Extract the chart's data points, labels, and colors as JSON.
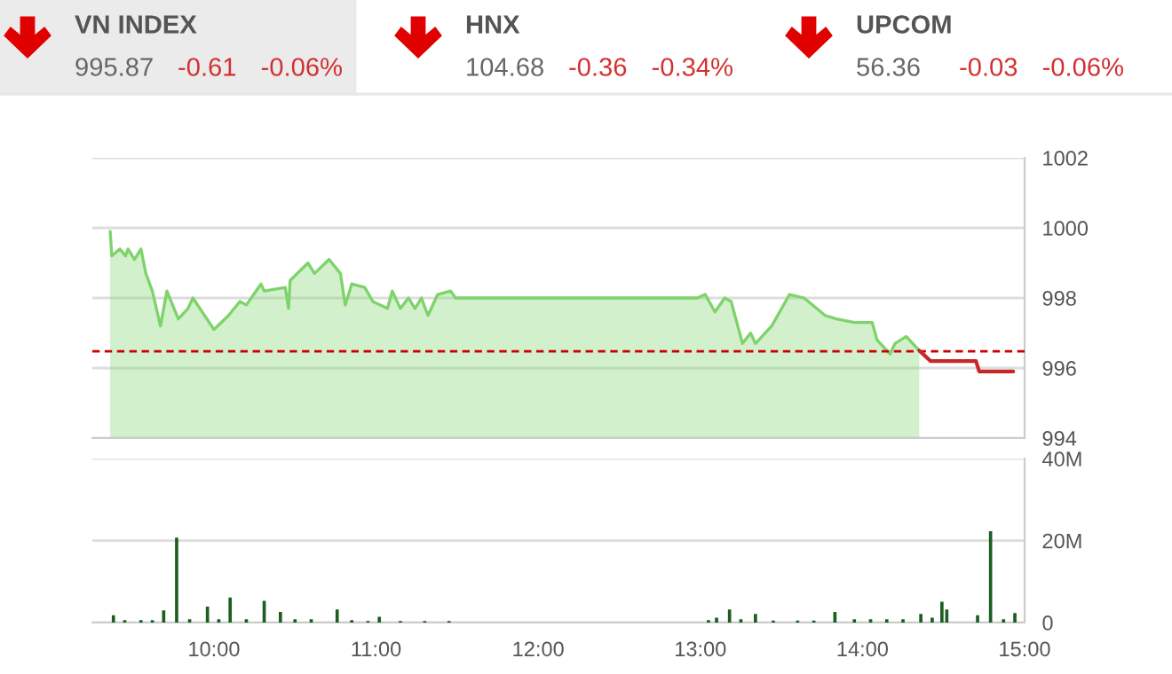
{
  "chart_data": [
    {
      "type": "other",
      "annotations": [
        "VN INDEX",
        "995.87",
        "-0.61",
        "-0.06%",
        "HNX",
        "104.68",
        "-0.36",
        "-0.34%",
        "UPCOM",
        "56.36",
        "-0.03",
        "-0.06%"
      ]
    },
    {
      "type": "area",
      "xlim": [
        9.25,
        15.0
      ],
      "ylim": [
        994,
        1002
      ],
      "yticks": [
        994,
        996,
        998,
        1000,
        1002
      ],
      "grid": "y",
      "tick_labels": "y",
      "ref_lines": [
        {
          "axis": "y",
          "value": 996.48,
          "color": "#cc0000",
          "line_style": "dashed"
        }
      ],
      "series": [
        {
          "type": "area",
          "color": "#7ed36b",
          "x": [
            9.36,
            9.37,
            9.42,
            9.455,
            9.47,
            9.51,
            9.55,
            9.58,
            9.62,
            9.67,
            9.71,
            9.78,
            9.84,
            9.87,
            10.0,
            10.09,
            10.16,
            10.2,
            10.29,
            10.31,
            10.44,
            10.46,
            10.47,
            10.58,
            10.62,
            10.71,
            10.78,
            10.81,
            10.85,
            10.93,
            10.98,
            11.07,
            11.1,
            11.15,
            11.2,
            11.24,
            11.28,
            11.32,
            11.38,
            11.46,
            11.49,
            12.98,
            13.03,
            13.09,
            13.15,
            13.19,
            13.26,
            13.31,
            13.34,
            13.44,
            13.55,
            13.64,
            13.77,
            13.84,
            13.95,
            14.06,
            14.09,
            14.17,
            14.2,
            14.27,
            14.35
          ],
          "values": [
            999.9,
            999.2,
            999.4,
            999.2,
            999.4,
            999.1,
            999.4,
            998.7,
            998.2,
            997.2,
            998.2,
            997.4,
            997.7,
            998.0,
            997.1,
            997.5,
            997.9,
            997.8,
            998.4,
            998.2,
            998.3,
            997.7,
            998.5,
            999.0,
            998.7,
            999.1,
            998.7,
            997.8,
            998.4,
            998.3,
            997.9,
            997.7,
            998.2,
            997.7,
            998.0,
            997.7,
            998.0,
            997.5,
            998.1,
            998.2,
            998.0,
            998.0,
            998.1,
            997.6,
            998.0,
            997.9,
            996.7,
            997.0,
            996.7,
            997.2,
            998.1,
            998.0,
            997.5,
            997.4,
            997.3,
            997.3,
            996.8,
            996.4,
            996.7,
            996.9,
            996.5
          ]
        },
        {
          "type": "line",
          "color": "#c62828",
          "x": [
            14.35,
            14.42,
            14.45,
            14.7,
            14.72,
            14.93
          ],
          "values": [
            996.5,
            996.2,
            996.2,
            996.2,
            995.9,
            995.9
          ]
        }
      ]
    },
    {
      "type": "bar",
      "color": "#1b5e20",
      "xlim": [
        9.25,
        15.0
      ],
      "ylim": [
        0,
        40
      ],
      "grid": "y",
      "xticks": [
        {
          "value": 10,
          "label": "10:00"
        },
        {
          "value": 11,
          "label": "11:00"
        },
        {
          "value": 12,
          "label": "12:00"
        },
        {
          "value": 13,
          "label": "13:00"
        },
        {
          "value": 14,
          "label": "14:00"
        },
        {
          "value": 15,
          "label": "15:00"
        }
      ],
      "yticks": [
        0,
        {
          "value": 20,
          "label": "20M"
        },
        {
          "value": 40,
          "label": "40M"
        }
      ],
      "x": [
        9.38,
        9.45,
        9.55,
        9.62,
        9.69,
        9.77,
        9.85,
        9.96,
        10.03,
        10.1,
        10.2,
        10.31,
        10.41,
        10.5,
        10.6,
        10.76,
        10.85,
        10.95,
        11.02,
        11.15,
        11.3,
        11.45,
        13.05,
        13.1,
        13.18,
        13.25,
        13.34,
        13.45,
        13.6,
        13.7,
        13.83,
        13.95,
        14.05,
        14.15,
        14.25,
        14.36,
        14.43,
        14.49,
        14.52,
        14.71,
        14.79,
        14.87,
        14.94
      ],
      "values": [
        1.8,
        0.6,
        0.6,
        0.6,
        3.0,
        20.7,
        0.8,
        3.9,
        0.8,
        6.1,
        0.8,
        5.3,
        2.6,
        0.8,
        0.8,
        3.2,
        0.6,
        0.4,
        1.4,
        0.4,
        0.4,
        0.4,
        0.6,
        1.2,
        3.2,
        0.8,
        2.1,
        0.5,
        0.5,
        0.5,
        2.6,
        0.8,
        0.8,
        0.8,
        0.8,
        2.1,
        1.2,
        5.1,
        3.2,
        1.8,
        22.3,
        0.8,
        2.3
      ]
    }
  ]
}
